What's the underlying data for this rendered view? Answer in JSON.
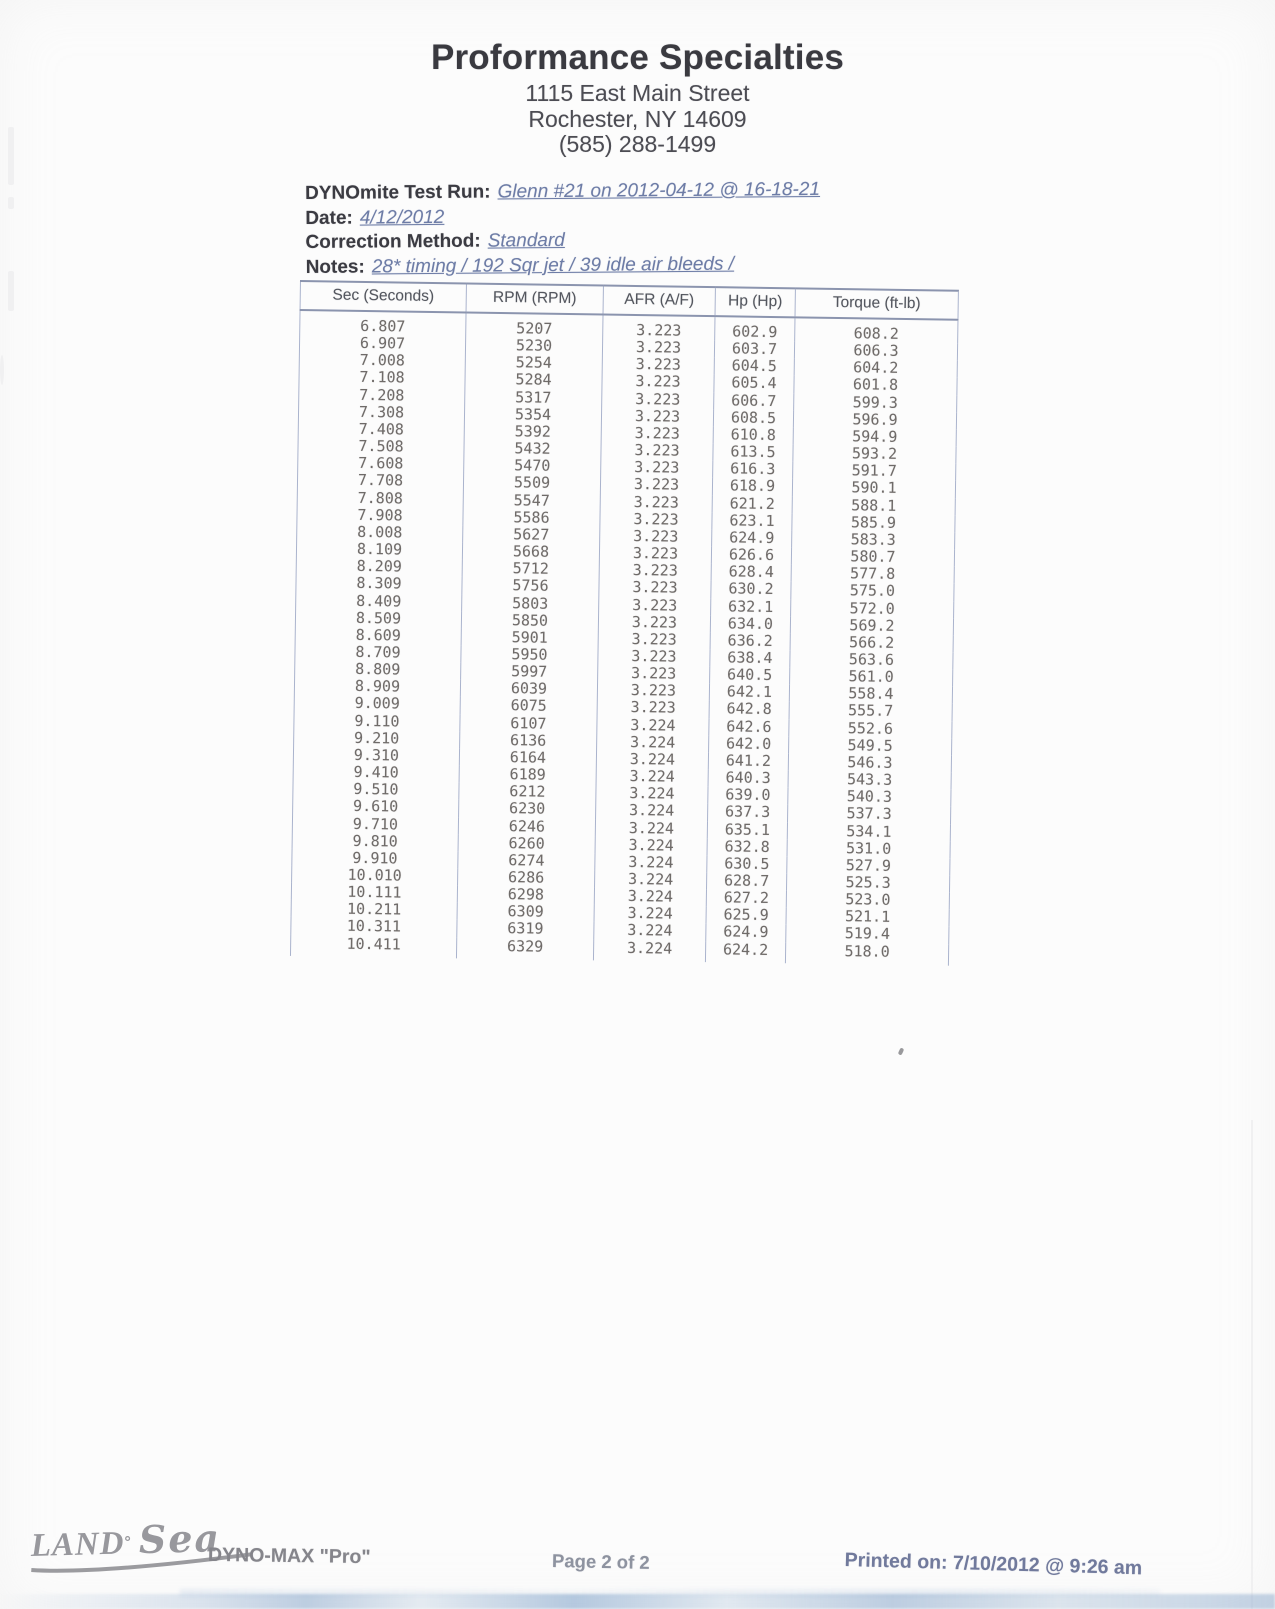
{
  "header": {
    "company": "Proformance Specialties",
    "address_line1": "1115 East Main Street",
    "address_line2": "Rochester, NY 14609",
    "phone": "(585) 288-1499"
  },
  "meta": {
    "test_run_label": "DYNOmite Test Run:",
    "test_run_value": "Glenn #21 on 2012-04-12 @ 16-18-21",
    "date_label": "Date:",
    "date_value": "4/12/2012",
    "correction_label": "Correction Method:",
    "correction_value": "Standard",
    "notes_label": "Notes:",
    "notes_value": "28* timing / 192 Sqr jet / 39 idle air bleeds /"
  },
  "table": {
    "columns": [
      "Sec (Seconds)",
      "RPM (RPM)",
      "AFR (A/F)",
      "Hp (Hp)",
      "Torque (ft-lb)"
    ],
    "rows": [
      [
        "6.807",
        "5207",
        "3.223",
        "602.9",
        "608.2"
      ],
      [
        "6.907",
        "5230",
        "3.223",
        "603.7",
        "606.3"
      ],
      [
        "7.008",
        "5254",
        "3.223",
        "604.5",
        "604.2"
      ],
      [
        "7.108",
        "5284",
        "3.223",
        "605.4",
        "601.8"
      ],
      [
        "7.208",
        "5317",
        "3.223",
        "606.7",
        "599.3"
      ],
      [
        "7.308",
        "5354",
        "3.223",
        "608.5",
        "596.9"
      ],
      [
        "7.408",
        "5392",
        "3.223",
        "610.8",
        "594.9"
      ],
      [
        "7.508",
        "5432",
        "3.223",
        "613.5",
        "593.2"
      ],
      [
        "7.608",
        "5470",
        "3.223",
        "616.3",
        "591.7"
      ],
      [
        "7.708",
        "5509",
        "3.223",
        "618.9",
        "590.1"
      ],
      [
        "7.808",
        "5547",
        "3.223",
        "621.2",
        "588.1"
      ],
      [
        "7.908",
        "5586",
        "3.223",
        "623.1",
        "585.9"
      ],
      [
        "8.008",
        "5627",
        "3.223",
        "624.9",
        "583.3"
      ],
      [
        "8.109",
        "5668",
        "3.223",
        "626.6",
        "580.7"
      ],
      [
        "8.209",
        "5712",
        "3.223",
        "628.4",
        "577.8"
      ],
      [
        "8.309",
        "5756",
        "3.223",
        "630.2",
        "575.0"
      ],
      [
        "8.409",
        "5803",
        "3.223",
        "632.1",
        "572.0"
      ],
      [
        "8.509",
        "5850",
        "3.223",
        "634.0",
        "569.2"
      ],
      [
        "8.609",
        "5901",
        "3.223",
        "636.2",
        "566.2"
      ],
      [
        "8.709",
        "5950",
        "3.223",
        "638.4",
        "563.6"
      ],
      [
        "8.809",
        "5997",
        "3.223",
        "640.5",
        "561.0"
      ],
      [
        "8.909",
        "6039",
        "3.223",
        "642.1",
        "558.4"
      ],
      [
        "9.009",
        "6075",
        "3.223",
        "642.8",
        "555.7"
      ],
      [
        "9.110",
        "6107",
        "3.224",
        "642.6",
        "552.6"
      ],
      [
        "9.210",
        "6136",
        "3.224",
        "642.0",
        "549.5"
      ],
      [
        "9.310",
        "6164",
        "3.224",
        "641.2",
        "546.3"
      ],
      [
        "9.410",
        "6189",
        "3.224",
        "640.3",
        "543.3"
      ],
      [
        "9.510",
        "6212",
        "3.224",
        "639.0",
        "540.3"
      ],
      [
        "9.610",
        "6230",
        "3.224",
        "637.3",
        "537.3"
      ],
      [
        "9.710",
        "6246",
        "3.224",
        "635.1",
        "534.1"
      ],
      [
        "9.810",
        "6260",
        "3.224",
        "632.8",
        "531.0"
      ],
      [
        "9.910",
        "6274",
        "3.224",
        "630.5",
        "527.9"
      ],
      [
        "10.010",
        "6286",
        "3.224",
        "628.7",
        "525.3"
      ],
      [
        "10.111",
        "6298",
        "3.224",
        "627.2",
        "523.0"
      ],
      [
        "10.211",
        "6309",
        "3.224",
        "625.9",
        "521.1"
      ],
      [
        "10.311",
        "6319",
        "3.224",
        "624.9",
        "519.4"
      ],
      [
        "10.411",
        "6329",
        "3.224",
        "624.2",
        "518.0"
      ]
    ]
  },
  "footer": {
    "logo_land": "LAND",
    "logo_degree": "°",
    "logo_sea": "Sea",
    "product": "DYNO-MAX \"Pro\"",
    "page": "Page 2 of 2",
    "printed": "Printed on: 7/10/2012 @ 9:26 am"
  },
  "colors": {
    "link_value": "#6d7ca6",
    "table_line_vertical": "#aab3cd",
    "table_line_horizontal": "#8b94ae",
    "data_ink": "#6f6b69",
    "label_ink": "#3b3b42",
    "footer_ink": "#85858b"
  }
}
